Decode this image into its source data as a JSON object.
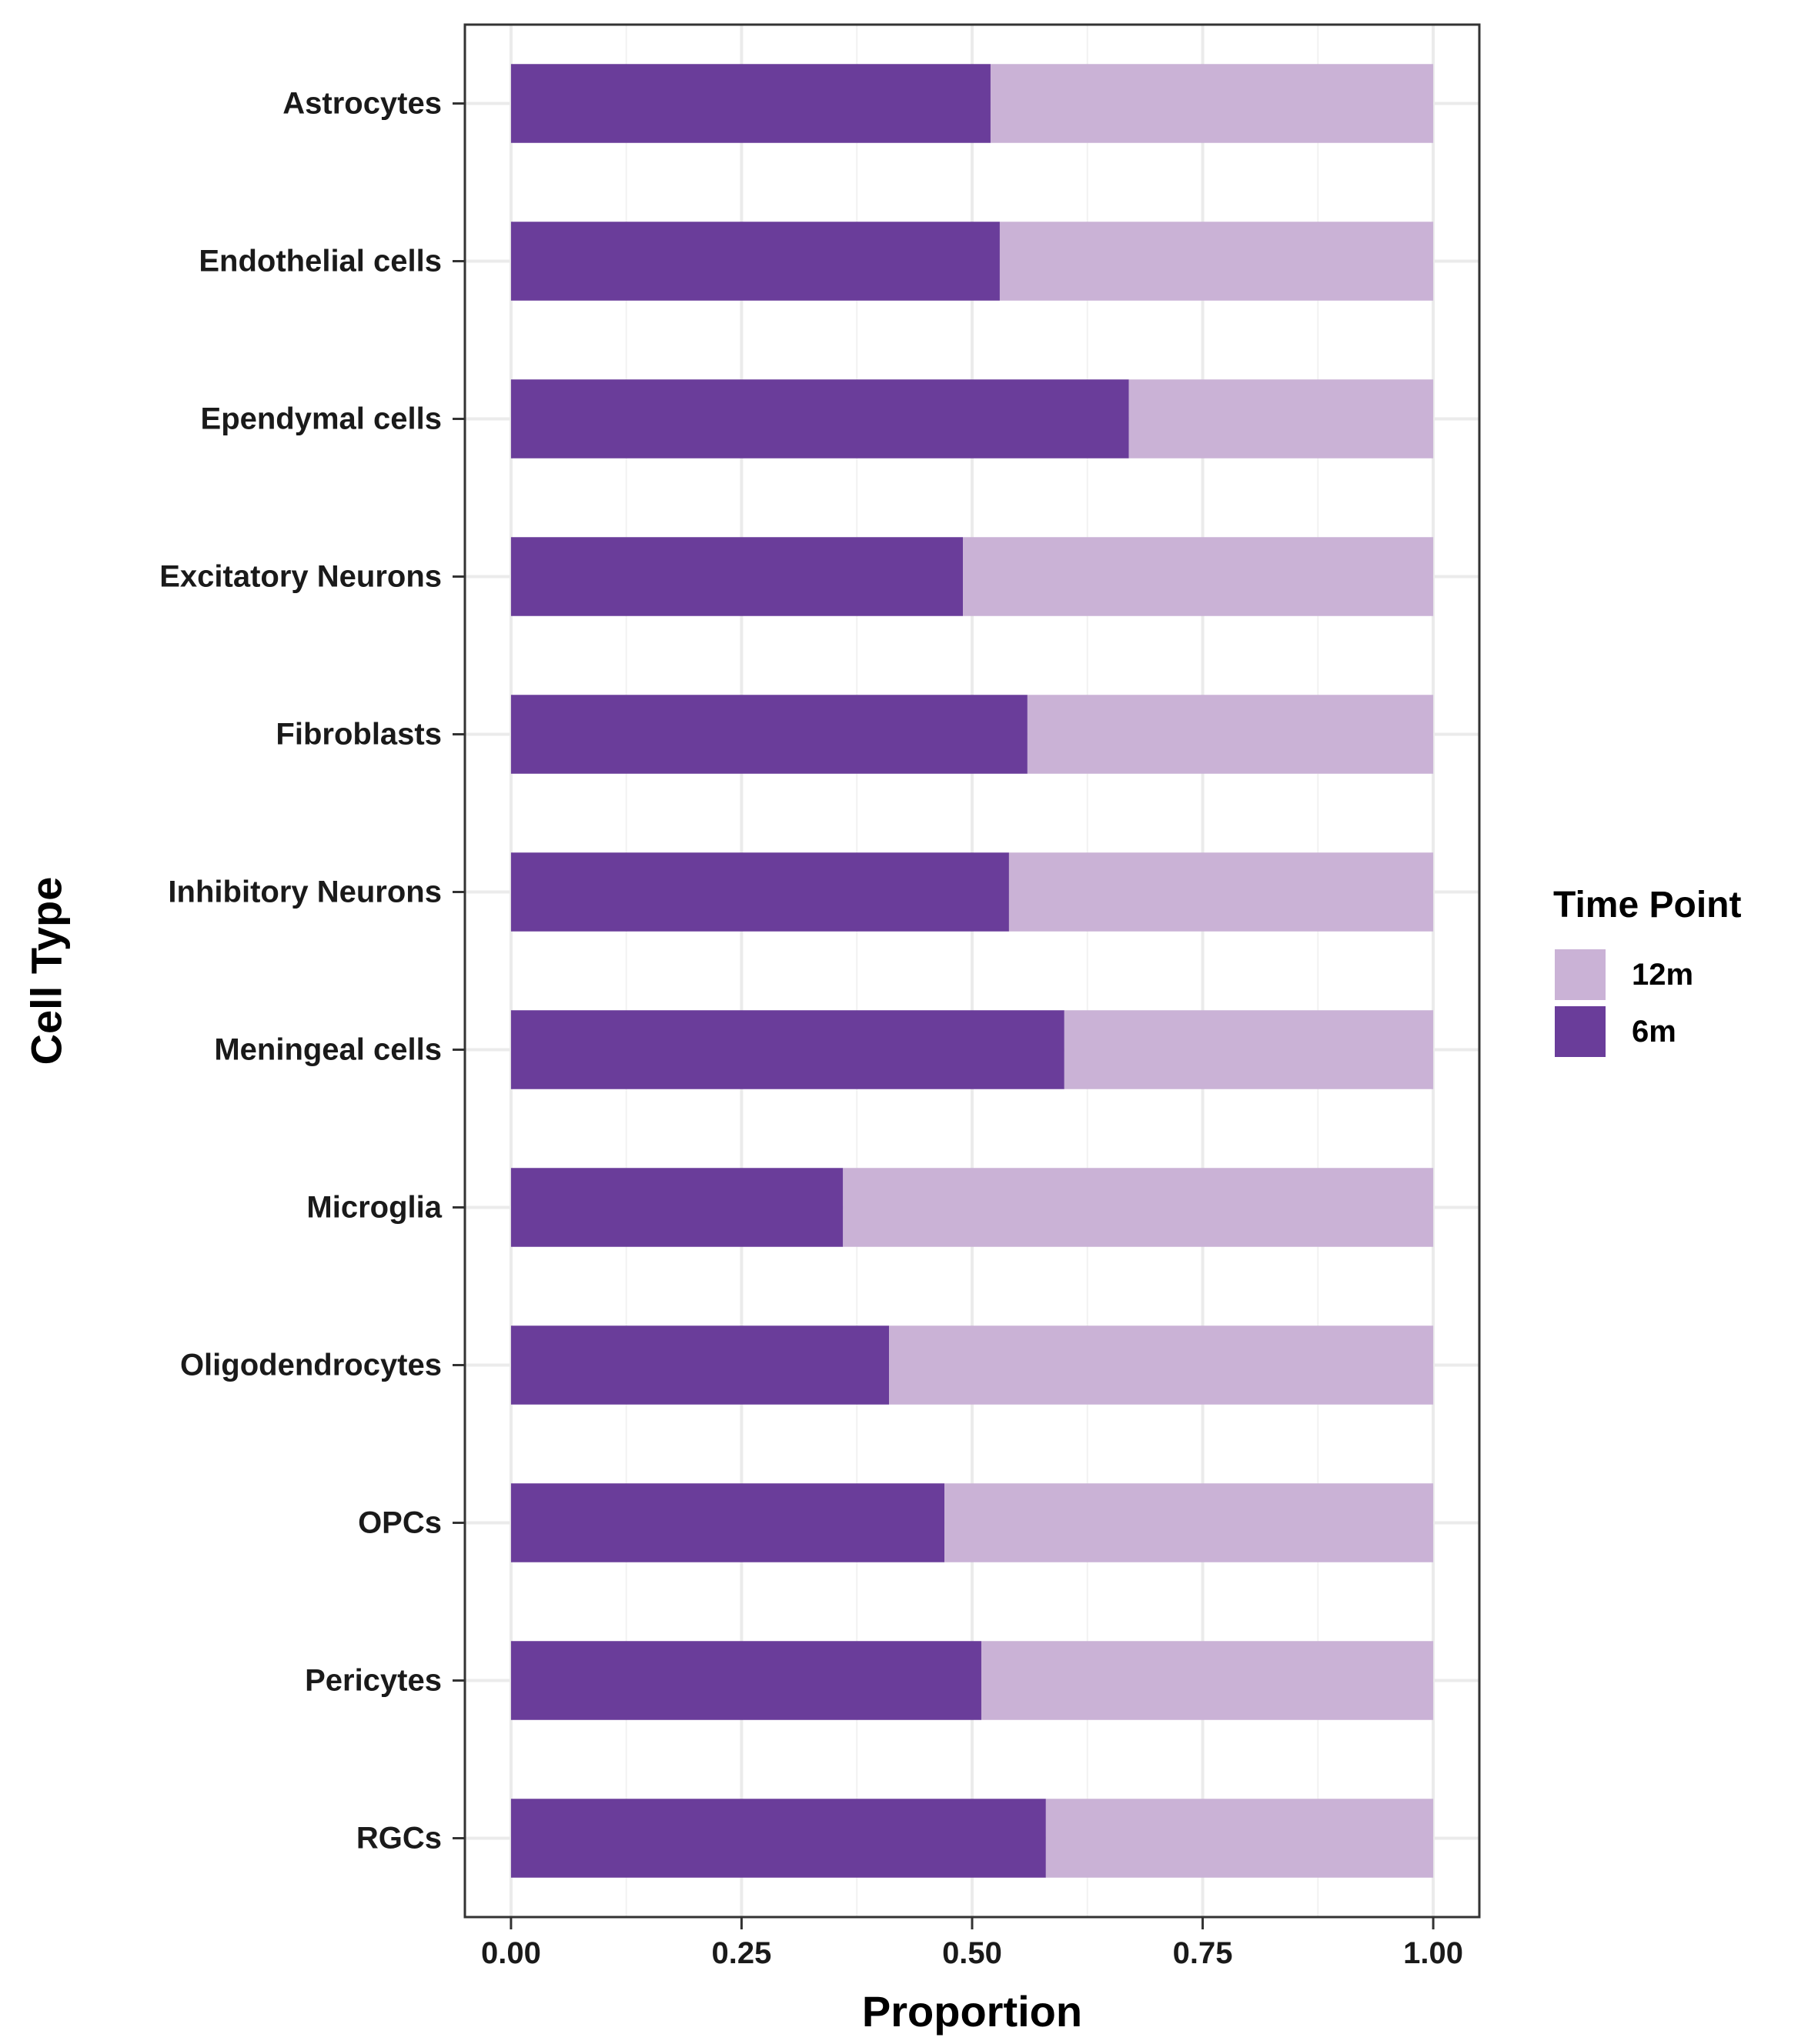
{
  "chart_data": {
    "type": "bar",
    "orientation": "horizontal",
    "stacked": true,
    "xlabel": "Proportion",
    "ylabel": "Cell Type",
    "xlim": [
      -0.05,
      1.05
    ],
    "xticks": [
      "0.00",
      "0.25",
      "0.50",
      "0.75",
      "1.00"
    ],
    "xtick_values": [
      0,
      0.25,
      0.5,
      0.75,
      1.0
    ],
    "grid": true,
    "categories": [
      "Astrocytes",
      "Endothelial cells",
      "Ependymal cells",
      "Excitatory Neurons",
      "Fibroblasts",
      "Inhibitory Neurons",
      "Meningeal cells",
      "Microglia",
      "Oligodendrocytes",
      "OPCs",
      "Pericytes",
      "RGCs"
    ],
    "series": [
      {
        "name": "6m",
        "color": "#6a3d9a",
        "values": [
          0.52,
          0.53,
          0.67,
          0.49,
          0.56,
          0.54,
          0.6,
          0.36,
          0.41,
          0.47,
          0.51,
          0.58
        ]
      },
      {
        "name": "12m",
        "color": "#cab2d6",
        "values": [
          0.48,
          0.47,
          0.33,
          0.51,
          0.44,
          0.46,
          0.4,
          0.64,
          0.59,
          0.53,
          0.49,
          0.42
        ]
      }
    ],
    "legend": {
      "title": "Time Point",
      "placement": "right",
      "entries": [
        {
          "label": "12m",
          "color": "#cab2d6"
        },
        {
          "label": "6m",
          "color": "#6a3d9a"
        }
      ]
    }
  }
}
